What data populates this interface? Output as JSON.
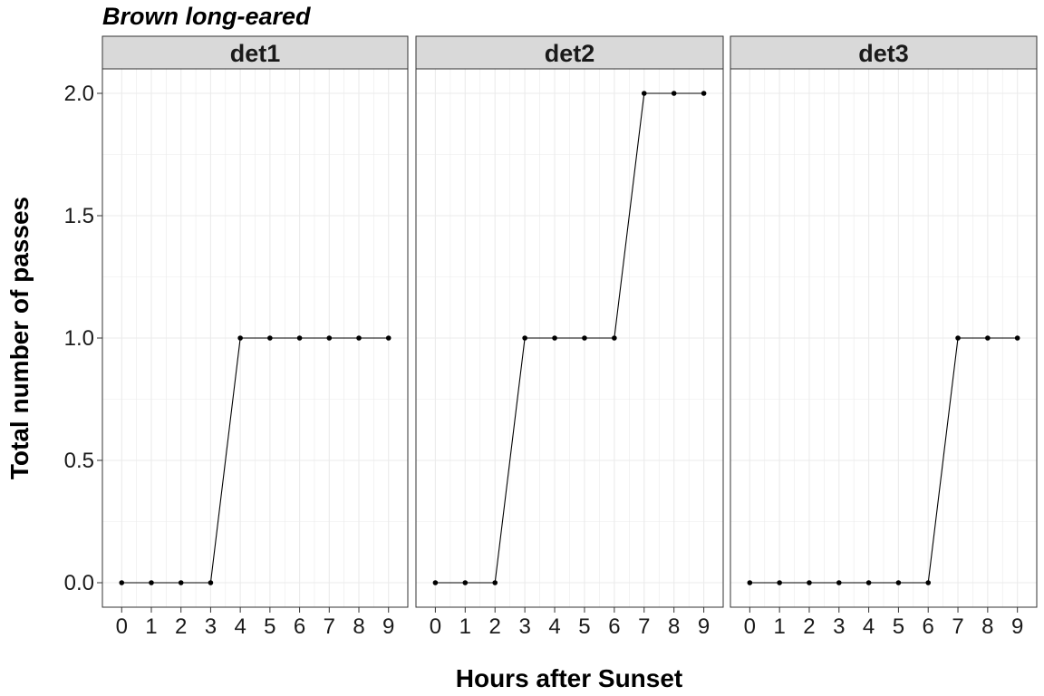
{
  "chart_data": {
    "type": "line",
    "title": "Brown long-eared",
    "xlabel": "Hours after Sunset",
    "ylabel": "Total number of passes",
    "x": [
      0,
      1,
      2,
      3,
      4,
      5,
      6,
      7,
      8,
      9
    ],
    "x_ticks": [
      "0",
      "1",
      "2",
      "3",
      "4",
      "5",
      "6",
      "7",
      "8",
      "9"
    ],
    "y_ticks": [
      "0.0",
      "0.5",
      "1.0",
      "1.5",
      "2.0"
    ],
    "xlim": [
      -0.65,
      9.65
    ],
    "ylim": [
      -0.1,
      2.1
    ],
    "grid": true,
    "colors": {
      "line": "#000000",
      "point": "#000000",
      "strip_fill": "#d9d9d9",
      "grid": "#ebebeb",
      "border": "#333333"
    },
    "panels": [
      {
        "name": "det1",
        "values": [
          0,
          0,
          0,
          0,
          1,
          1,
          1,
          1,
          1,
          1
        ]
      },
      {
        "name": "det2",
        "values": [
          0,
          0,
          0,
          1,
          1,
          1,
          1,
          2,
          2,
          2
        ]
      },
      {
        "name": "det3",
        "values": [
          0,
          0,
          0,
          0,
          0,
          0,
          0,
          1,
          1,
          1
        ]
      }
    ]
  }
}
